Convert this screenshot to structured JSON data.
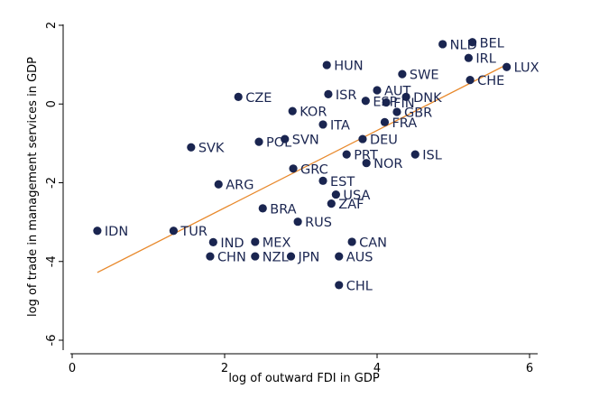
{
  "chart_data": {
    "type": "scatter",
    "xlabel": "log of outward FDI in GDP",
    "ylabel": "log of trade in management services in GDP",
    "xlim": [
      0,
      6
    ],
    "ylim": [
      -6,
      2
    ],
    "xticks": [
      "0",
      "2",
      "4",
      "6"
    ],
    "yticks": [
      "-6",
      "-4",
      "-2",
      "0",
      "2"
    ],
    "grid": false,
    "legend": "none",
    "point_color": "#1a2550",
    "fit_color": "#e8892c",
    "fit_line": {
      "x": [
        0.33,
        5.7
      ],
      "y": [
        -4.28,
        1.0
      ]
    },
    "points": [
      {
        "label": "BEL",
        "x": 5.25,
        "y": 1.57
      },
      {
        "label": "NLD",
        "x": 4.86,
        "y": 1.52
      },
      {
        "label": "IRL",
        "x": 5.2,
        "y": 1.17
      },
      {
        "label": "LUX",
        "x": 5.7,
        "y": 0.94
      },
      {
        "label": "CHE",
        "x": 5.22,
        "y": 0.61
      },
      {
        "label": "HUN",
        "x": 3.34,
        "y": 0.99
      },
      {
        "label": "SWE",
        "x": 4.33,
        "y": 0.76
      },
      {
        "label": "AUT",
        "x": 4.0,
        "y": 0.35
      },
      {
        "label": "DNK",
        "x": 4.38,
        "y": 0.18
      },
      {
        "label": "ISR",
        "x": 3.36,
        "y": 0.25
      },
      {
        "label": "ESP",
        "x": 3.85,
        "y": 0.08
      },
      {
        "label": "FIN",
        "x": 4.12,
        "y": 0.04
      },
      {
        "label": "GBR",
        "x": 4.26,
        "y": -0.2
      },
      {
        "label": "CZE",
        "x": 2.18,
        "y": 0.18
      },
      {
        "label": "KOR",
        "x": 2.89,
        "y": -0.18
      },
      {
        "label": "ITA",
        "x": 3.29,
        "y": -0.52
      },
      {
        "label": "FRA",
        "x": 4.1,
        "y": -0.46
      },
      {
        "label": "SVK",
        "x": 1.56,
        "y": -1.1
      },
      {
        "label": "POL",
        "x": 2.45,
        "y": -0.96
      },
      {
        "label": "SVN",
        "x": 2.79,
        "y": -0.89
      },
      {
        "label": "DEU",
        "x": 3.81,
        "y": -0.89
      },
      {
        "label": "PRT",
        "x": 3.6,
        "y": -1.28
      },
      {
        "label": "NOR",
        "x": 3.86,
        "y": -1.5
      },
      {
        "label": "ISL",
        "x": 4.5,
        "y": -1.28
      },
      {
        "label": "GRC",
        "x": 2.9,
        "y": -1.64
      },
      {
        "label": "ARG",
        "x": 1.92,
        "y": -2.04
      },
      {
        "label": "EST",
        "x": 3.29,
        "y": -1.95
      },
      {
        "label": "USA",
        "x": 3.46,
        "y": -2.3
      },
      {
        "label": "ZAF",
        "x": 3.4,
        "y": -2.53
      },
      {
        "label": "BRA",
        "x": 2.5,
        "y": -2.65
      },
      {
        "label": "RUS",
        "x": 2.96,
        "y": -2.99
      },
      {
        "label": "IDN",
        "x": 0.33,
        "y": -3.22
      },
      {
        "label": "TUR",
        "x": 1.33,
        "y": -3.22
      },
      {
        "label": "IND",
        "x": 1.85,
        "y": -3.51
      },
      {
        "label": "MEX",
        "x": 2.4,
        "y": -3.5
      },
      {
        "label": "CAN",
        "x": 3.67,
        "y": -3.5
      },
      {
        "label": "CHN",
        "x": 1.81,
        "y": -3.87
      },
      {
        "label": "NZL",
        "x": 2.4,
        "y": -3.87
      },
      {
        "label": "JPN",
        "x": 2.87,
        "y": -3.87
      },
      {
        "label": "AUS",
        "x": 3.5,
        "y": -3.87
      },
      {
        "label": "CHL",
        "x": 3.5,
        "y": -4.6
      }
    ]
  }
}
